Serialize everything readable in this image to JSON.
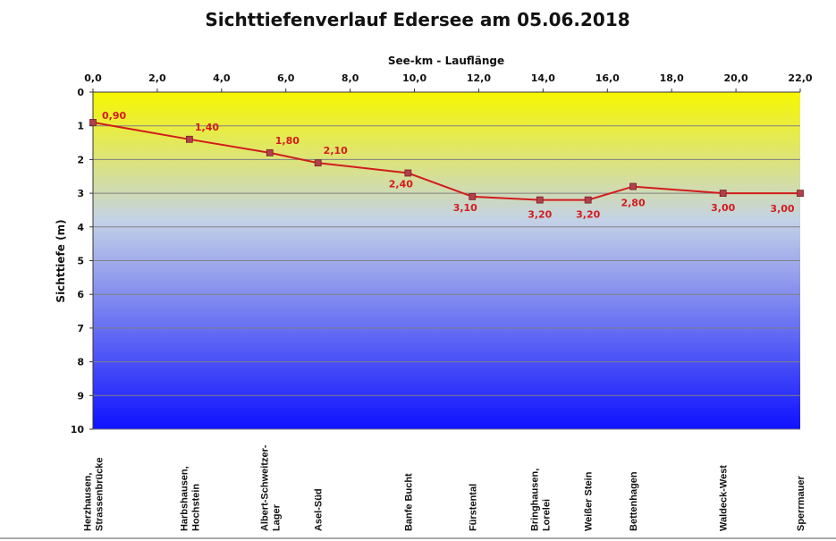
{
  "chart_data": {
    "type": "line",
    "title": "Sichttiefenverlauf Edersee am 05.06.2018",
    "xlabel": "See-km - Lauflänge",
    "ylabel": "Sichttiefe (m)",
    "xlim": [
      0,
      22
    ],
    "ylim": [
      0,
      10
    ],
    "y_inverted": true,
    "x_axis_position": "top",
    "grid": true,
    "legend": "none",
    "x_ticks": [
      "0,0",
      "2,0",
      "4,0",
      "6,0",
      "8,0",
      "10,0",
      "12,0",
      "14,0",
      "16,0",
      "18,0",
      "20,0",
      "22,0"
    ],
    "y_ticks": [
      "0",
      "1",
      "2",
      "3",
      "4",
      "5",
      "6",
      "7",
      "8",
      "9",
      "10"
    ],
    "colors": {
      "line": "#d21c1c",
      "marker": "#b0404a",
      "label": "#d21c1c",
      "bg_top": "#f7f700",
      "bg_mid": "#c4d2e6",
      "bg_bottom": "#0f12ff",
      "grid": "#808080"
    },
    "series": [
      {
        "x": [
          0.0,
          3.0,
          5.5,
          7.0,
          9.8,
          11.8,
          13.9,
          15.4,
          16.8,
          19.6,
          22.0
        ],
        "y": [
          0.9,
          1.4,
          1.8,
          2.1,
          2.4,
          3.1,
          3.2,
          3.2,
          2.8,
          3.0,
          3.0
        ],
        "labels": [
          "0,90",
          "1,40",
          "1,80",
          "2,10",
          "2,40",
          "3,10",
          "3,20",
          "3,20",
          "2,80",
          "3,00",
          "3,00"
        ],
        "sites": [
          [
            "Herzhausen,",
            "Strassenbrücke"
          ],
          [
            "Harbshausen,",
            "Hochstein"
          ],
          [
            "Albert-Schweitzer-",
            "Lager"
          ],
          [
            "Asel-Süd"
          ],
          [
            "Banfe Bucht"
          ],
          [
            "Fürstental"
          ],
          [
            "Bringhausen,",
            "Lorelei"
          ],
          [
            "Weißer Stein"
          ],
          [
            "Bettenhagen"
          ],
          [
            "Waldeck-West"
          ],
          [
            "Sperrmauer"
          ]
        ]
      }
    ]
  }
}
